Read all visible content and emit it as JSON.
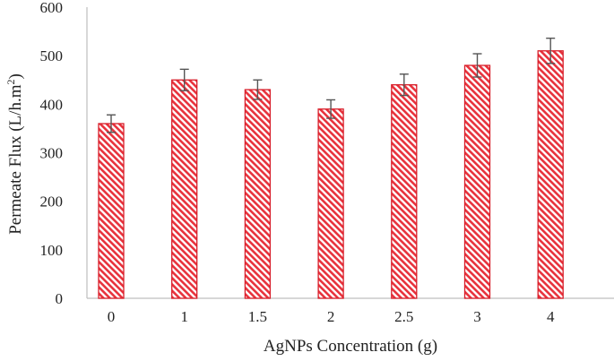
{
  "chart_data": {
    "type": "bar",
    "title": "",
    "xlabel": "AgNPs Concentration (g)",
    "ylabel": "Permeate Flux (L/h.m",
    "ylabel_superscript": "2",
    "ylabel_close": ")",
    "categories": [
      "0",
      "1",
      "1.5",
      "2",
      "2.5",
      "3",
      "4"
    ],
    "values": [
      360,
      450,
      430,
      390,
      440,
      480,
      510
    ],
    "errors": [
      18,
      22,
      20,
      19,
      22,
      24,
      26
    ],
    "ylim": [
      0,
      600
    ],
    "yticks": [
      0,
      100,
      200,
      300,
      400,
      500,
      600
    ],
    "grid": false,
    "legend": "none",
    "colors": {
      "bar_fill": "#e8323c",
      "bar_edge": "#d81e2a",
      "error_bar": "#555555",
      "axis": "#bfbfbf",
      "text": "#222222"
    }
  }
}
